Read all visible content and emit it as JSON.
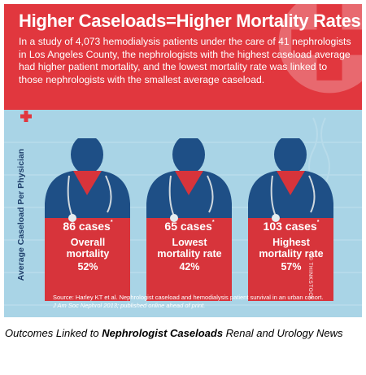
{
  "infographic": {
    "title": "Higher Caseloads=Higher Mortality Rates",
    "description": "In a study of 4,073 hemodialysis patients under the care of 41 nephrologists in Los Angeles County, the nephrologists with the highest caseload average had higher patient mortality, and the lowest mortality rate was linked to those nephrologists with the smallest average caseload.",
    "y_axis_label": "Average Caseload Per Physician",
    "credit": "© THINKSTOCK",
    "source_line1": "Source: Harley KT et al. Nephrologist caseload and hemodialysis patient survival in an urban cohort.",
    "source_line2": "J Am Soc Nephrol 2013; published online ahead of print.",
    "groups": [
      {
        "cases": "86 cases",
        "label_line1": "Overall",
        "label_line2": "mortality",
        "pct": "52%"
      },
      {
        "cases": "65 cases",
        "label_line1": "Lowest",
        "label_line2": "mortality rate",
        "pct": "42%"
      },
      {
        "cases": "103 cases",
        "label_line1": "Highest",
        "label_line2": "mortality rate",
        "pct": "57%"
      }
    ],
    "colors": {
      "header": "#e1373e",
      "background": "#a9d4e6",
      "coat": "#1e4f86",
      "body": "#d7343b"
    }
  },
  "caption": {
    "prefix": "Outcomes Linked to ",
    "bold": "Nephrologist Caseloads",
    "suffix": " Renal and Urology News"
  }
}
